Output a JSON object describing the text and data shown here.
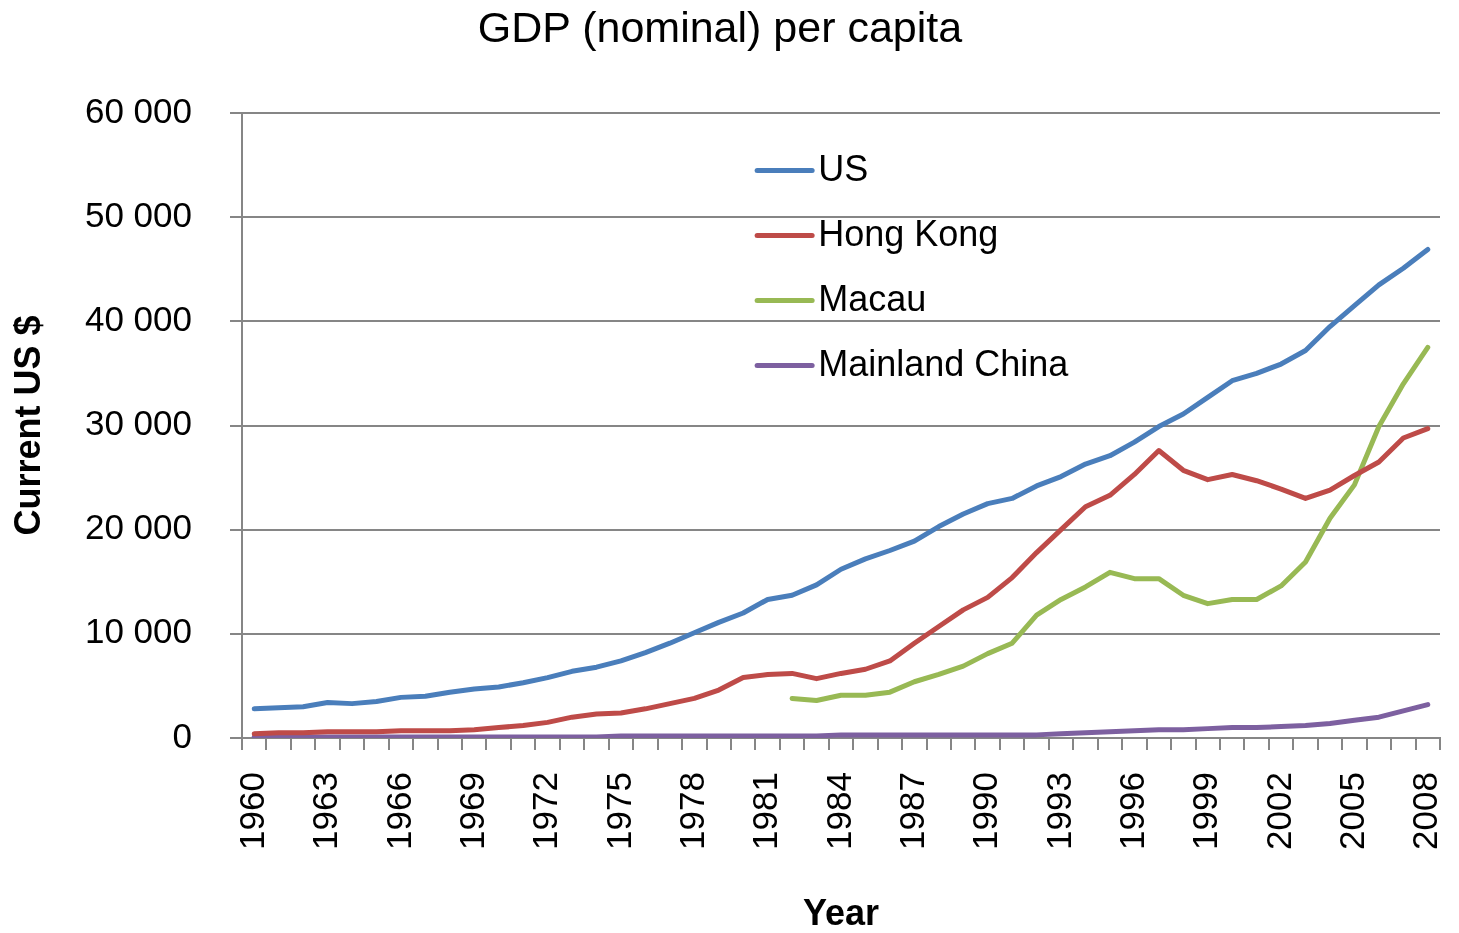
{
  "chart_data": {
    "type": "line",
    "title": "GDP (nominal) per capita",
    "xlabel": "Year",
    "ylabel": "Current US $",
    "categories": [
      "1960",
      null,
      null,
      "1963",
      null,
      null,
      "1966",
      null,
      null,
      "1969",
      null,
      null,
      "1972",
      null,
      null,
      "1975",
      null,
      null,
      "1978",
      null,
      null,
      "1981",
      null,
      null,
      "1984",
      null,
      null,
      "1987",
      null,
      null,
      "1990",
      null,
      null,
      "1993",
      null,
      null,
      "1996",
      null,
      null,
      "1999",
      null,
      null,
      "2002",
      null,
      null,
      "2005",
      null,
      null,
      "2008"
    ],
    "series": [
      {
        "name": "US",
        "color": "#4a7ebb",
        "values": [
          2800,
          2900,
          3000,
          3400,
          3300,
          3500,
          3900,
          4000,
          4400,
          4700,
          4900,
          5300,
          5800,
          6400,
          6800,
          7400,
          8200,
          9100,
          10100,
          11100,
          12000,
          13300,
          13700,
          14700,
          16200,
          17200,
          18000,
          18900,
          20300,
          21500,
          22500,
          23000,
          24200,
          25100,
          26300,
          27100,
          28400,
          29900,
          31100,
          32700,
          34300,
          35000,
          35900,
          37200,
          39500,
          41500,
          43500,
          45100,
          46900
        ]
      },
      {
        "name": "Hong Kong",
        "color": "#be4b48",
        "values": [
          400,
          500,
          500,
          600,
          600,
          600,
          700,
          700,
          700,
          800,
          1000,
          1200,
          1500,
          2000,
          2300,
          2400,
          2800,
          3300,
          3800,
          4600,
          5800,
          6100,
          6200,
          5700,
          6200,
          6600,
          7400,
          9100,
          10700,
          12300,
          13500,
          15400,
          17800,
          20000,
          22200,
          23300,
          25300,
          27600,
          25700,
          24800,
          25300,
          24700,
          23900,
          23000,
          23800,
          25200,
          26500,
          28800,
          29700
        ]
      },
      {
        "name": "Macau",
        "color": "#98b954",
        "values": [
          null,
          null,
          null,
          null,
          null,
          null,
          null,
          null,
          null,
          null,
          null,
          null,
          null,
          null,
          null,
          null,
          null,
          null,
          null,
          null,
          null,
          null,
          3800,
          3600,
          4100,
          4100,
          4400,
          5400,
          6100,
          6900,
          8100,
          9100,
          11800,
          13300,
          14500,
          15900,
          15300,
          15300,
          13700,
          12900,
          13300,
          13300,
          14600,
          16900,
          21100,
          24300,
          29900,
          34000,
          37500
        ]
      },
      {
        "name": "Mainland China",
        "color": "#7d60a0",
        "values": [
          100,
          100,
          100,
          100,
          100,
          100,
          100,
          100,
          100,
          100,
          100,
          100,
          100,
          100,
          100,
          200,
          200,
          200,
          200,
          200,
          200,
          200,
          200,
          200,
          300,
          300,
          300,
          300,
          300,
          300,
          300,
          300,
          300,
          400,
          500,
          600,
          700,
          800,
          800,
          900,
          1000,
          1000,
          1100,
          1200,
          1400,
          1700,
          2000,
          2600,
          3200
        ]
      }
    ],
    "ylim": [
      0,
      60000
    ],
    "yticks": [
      0,
      {
        "value": 10000,
        "label": "10 000"
      },
      {
        "value": 20000,
        "label": "20 000"
      },
      {
        "value": 30000,
        "label": "30 000"
      },
      {
        "value": 40000,
        "label": "40 000"
      },
      {
        "value": 50000,
        "label": "50 000"
      },
      {
        "value": 60000,
        "label": "60 000"
      }
    ],
    "grid": "y",
    "legend": "top"
  }
}
